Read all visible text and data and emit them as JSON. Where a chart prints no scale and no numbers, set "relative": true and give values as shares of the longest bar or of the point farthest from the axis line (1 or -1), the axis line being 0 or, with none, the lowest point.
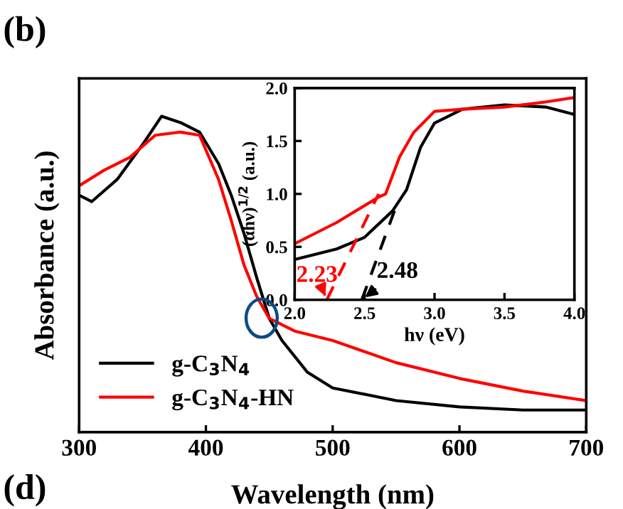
{
  "chart_data": [
    {
      "type": "line",
      "relative": true,
      "xlabel": "Wavelength (nm)",
      "ylabel": "Absorbance (a.u.)",
      "xlim": [
        300,
        700
      ],
      "xticks": [
        300,
        400,
        500,
        600,
        700
      ],
      "legend": "bottom left",
      "annotations": [
        "(b)",
        "(d)"
      ],
      "x": [
        300,
        310,
        330,
        350,
        365,
        380,
        395,
        410,
        420,
        430,
        440,
        450,
        460,
        480,
        500,
        550,
        600,
        650,
        700
      ],
      "series": [
        {
          "name": "g-C$_{3}$N$_{4}$",
          "color": "#000000",
          "values": [
            0.75,
            0.73,
            0.8,
            0.91,
            1.0,
            0.98,
            0.95,
            0.85,
            0.75,
            0.63,
            0.49,
            0.36,
            0.29,
            0.19,
            0.14,
            0.1,
            0.08,
            0.07,
            0.07
          ]
        },
        {
          "name": "g-C$_{3}$N$_{4}$-HN",
          "color": "#ff0000",
          "x": [
            300,
            320,
            340,
            360,
            380,
            395,
            410,
            420,
            430,
            440,
            450,
            470,
            500,
            550,
            600,
            650,
            700
          ],
          "values": [
            0.78,
            0.83,
            0.87,
            0.94,
            0.95,
            0.94,
            0.8,
            0.67,
            0.53,
            0.43,
            0.36,
            0.32,
            0.29,
            0.22,
            0.17,
            0.13,
            0.1
          ]
        }
      ]
    },
    {
      "type": "line",
      "xlabel": "hν (eV)",
      "ylabel": "(αhν)$^{1/2}$ (a.u.)",
      "xlim": [
        2.0,
        4.0
      ],
      "ylim": [
        0.0,
        2.0
      ],
      "xticks": [
        {
          "value": 2.0,
          "label": "2.0"
        },
        {
          "value": 2.5,
          "label": "2.5"
        },
        {
          "value": 3.0,
          "label": "3.0"
        },
        {
          "value": 3.5,
          "label": "3.5"
        },
        {
          "value": 4.0,
          "label": "4.0"
        }
      ],
      "yticks": [
        {
          "value": 0.0,
          "label": "0.0"
        },
        {
          "value": 0.5,
          "label": "0.5"
        },
        {
          "value": 1.0,
          "label": "1.0"
        },
        {
          "value": 1.5,
          "label": "1.5"
        },
        {
          "value": 2.0,
          "label": "2.0"
        }
      ],
      "annotations": [
        {
          "text": "2.23",
          "x": 2.23,
          "y": 0
        },
        {
          "text": "2.48",
          "x": 2.48,
          "y": 0
        }
      ],
      "series": [
        {
          "color": "#000000",
          "x": [
            2.0,
            2.3,
            2.5,
            2.7,
            2.8,
            2.9,
            3.0,
            3.2,
            3.5,
            3.8,
            4.0
          ],
          "values": [
            0.38,
            0.48,
            0.59,
            0.84,
            1.04,
            1.44,
            1.67,
            1.8,
            1.84,
            1.82,
            1.75
          ]
        },
        {
          "color": "#ff0000",
          "x": [
            2.0,
            2.3,
            2.6,
            2.65,
            2.75,
            2.85,
            3.0,
            3.2,
            3.5,
            3.8,
            4.0
          ],
          "values": [
            0.53,
            0.73,
            0.97,
            1.0,
            1.35,
            1.58,
            1.78,
            1.8,
            1.82,
            1.87,
            1.91
          ]
        },
        {
          "color": "#ff0000",
          "line_style": "dashed",
          "x": [
            2.23,
            2.6
          ],
          "values": [
            0,
            1.0
          ]
        },
        {
          "color": "#000000",
          "line_style": "dashed",
          "x": [
            2.48,
            2.73
          ],
          "values": [
            0,
            0.9
          ]
        }
      ]
    }
  ]
}
